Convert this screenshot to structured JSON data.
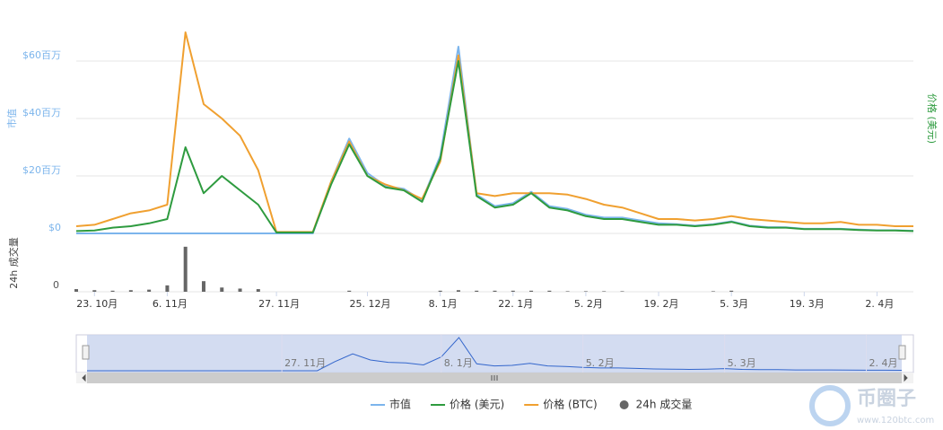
{
  "chart_data": {
    "type": "line",
    "y_title": "市值",
    "y2_title": "价格 (美元)",
    "categories": [
      null,
      "23. 10月",
      null,
      null,
      null,
      "6. 11月",
      null,
      null,
      null,
      null,
      null,
      "27. 11月",
      null,
      null,
      null,
      null,
      "25. 12月",
      null,
      null,
      null,
      "8. 1月",
      null,
      null,
      null,
      "22. 1月",
      null,
      null,
      null,
      "5. 2月",
      null,
      null,
      null,
      "19. 2月",
      null,
      null,
      null,
      "5. 3月",
      null,
      null,
      null,
      "19. 3月",
      null,
      null,
      null,
      "2. 4月",
      null,
      null
    ],
    "ylim": [
      0,
      80
    ],
    "yticks": [
      {
        "value": 0,
        "label": "$0"
      },
      {
        "value": 20,
        "label": "$20百万"
      },
      {
        "value": 40,
        "label": "$40百万"
      },
      {
        "value": 60,
        "label": "$60百万"
      }
    ],
    "grid": true,
    "series": [
      {
        "name": "市值",
        "color": "#7cb5ec",
        "values": [
          0,
          0,
          0,
          0,
          0,
          0,
          0,
          0,
          0,
          0,
          0,
          0,
          0,
          0,
          18,
          33,
          21,
          16.5,
          15.5,
          11.5,
          27,
          65,
          13.5,
          9.5,
          10.5,
          14.5,
          9.5,
          8.5,
          6.5,
          5.5,
          5.5,
          4.5,
          3.5,
          3.2,
          2.7,
          3.2,
          4.2,
          2.7,
          2.2,
          2.1,
          1.6,
          1.6,
          1.6,
          1.3,
          1.1,
          1.1,
          0.9
        ]
      },
      {
        "name": "价格 (美元)",
        "color": "#2e9b3f",
        "values": [
          0.8,
          1,
          2,
          2.5,
          3.5,
          5,
          30,
          14,
          20,
          15,
          10,
          0.3,
          0.3,
          0.3,
          17,
          31,
          20,
          16,
          15,
          11,
          26,
          60,
          13,
          9,
          10,
          14,
          9,
          8,
          6,
          5,
          5,
          4,
          3,
          3,
          2.5,
          3,
          4,
          2.5,
          2,
          2,
          1.5,
          1.5,
          1.5,
          1.2,
          1,
          1,
          0.8
        ]
      },
      {
        "name": "价格 (BTC)",
        "color": "#f0a030",
        "values": [
          2.5,
          3,
          5,
          7,
          8,
          10,
          70,
          45,
          40,
          34,
          22,
          0.5,
          0.5,
          0.5,
          18,
          32,
          20,
          17,
          15,
          12,
          25,
          62,
          14,
          13,
          14,
          14,
          14,
          13.5,
          12,
          10,
          9,
          7,
          5,
          5,
          4.5,
          5,
          6,
          5,
          4.5,
          4,
          3.5,
          3.5,
          4,
          3,
          3,
          2.5,
          2.5
        ]
      }
    ],
    "volume": {
      "name": "24h 成交量",
      "title": "24h 成交量",
      "color": "#666666",
      "ylim": [
        0,
        100
      ],
      "yticks": [
        0
      ],
      "values": [
        5,
        3,
        2,
        3,
        4,
        12,
        85,
        20,
        8,
        6,
        5,
        0,
        0,
        0,
        0,
        2,
        0,
        0,
        0,
        0,
        2,
        3,
        2,
        2,
        2,
        2,
        2,
        1,
        1,
        1,
        1,
        0,
        0,
        0,
        0,
        1,
        2,
        0,
        0,
        0,
        0,
        0,
        0,
        0,
        0,
        0,
        0
      ]
    },
    "navigator_label_indices": [
      11,
      20,
      28,
      36,
      44
    ],
    "watermark": {
      "title": "币圈子",
      "url": "www.120btc.com"
    }
  }
}
